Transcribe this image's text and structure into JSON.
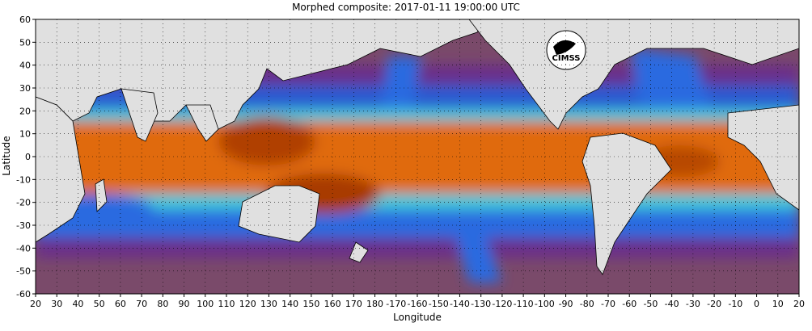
{
  "title": "Morphed composite: 2017-01-11 19:00:00 UTC",
  "map": {
    "xlabel": "Longitude",
    "ylabel": "Latitude",
    "x_ticks": [
      "20",
      "30",
      "40",
      "50",
      "60",
      "70",
      "80",
      "90",
      "100",
      "110",
      "120",
      "130",
      "140",
      "150",
      "160",
      "170",
      "180",
      "-170",
      "-160",
      "-150",
      "-140",
      "-130",
      "-120",
      "-110",
      "-100",
      "-90",
      "-80",
      "-70",
      "-60",
      "-50",
      "-40",
      "-30",
      "-20",
      "-10",
      "0",
      "10",
      "20"
    ],
    "y_ticks": [
      "60",
      "50",
      "40",
      "30",
      "20",
      "10",
      "0",
      "-10",
      "-20",
      "-30",
      "-40",
      "-50",
      "-60"
    ],
    "lon_range": [
      20,
      380
    ],
    "lat_range": [
      -60,
      60
    ],
    "logo_text": "CIMSS",
    "colors": {
      "land": "#e0e0e0",
      "dry": "#7a4a6a",
      "low": "#5a2a8a",
      "mid": "#2a6ae0",
      "moist": "#4ad0e0",
      "wet": "#e06a10",
      "very_wet": "#a03000",
      "coast": "#000000"
    }
  }
}
